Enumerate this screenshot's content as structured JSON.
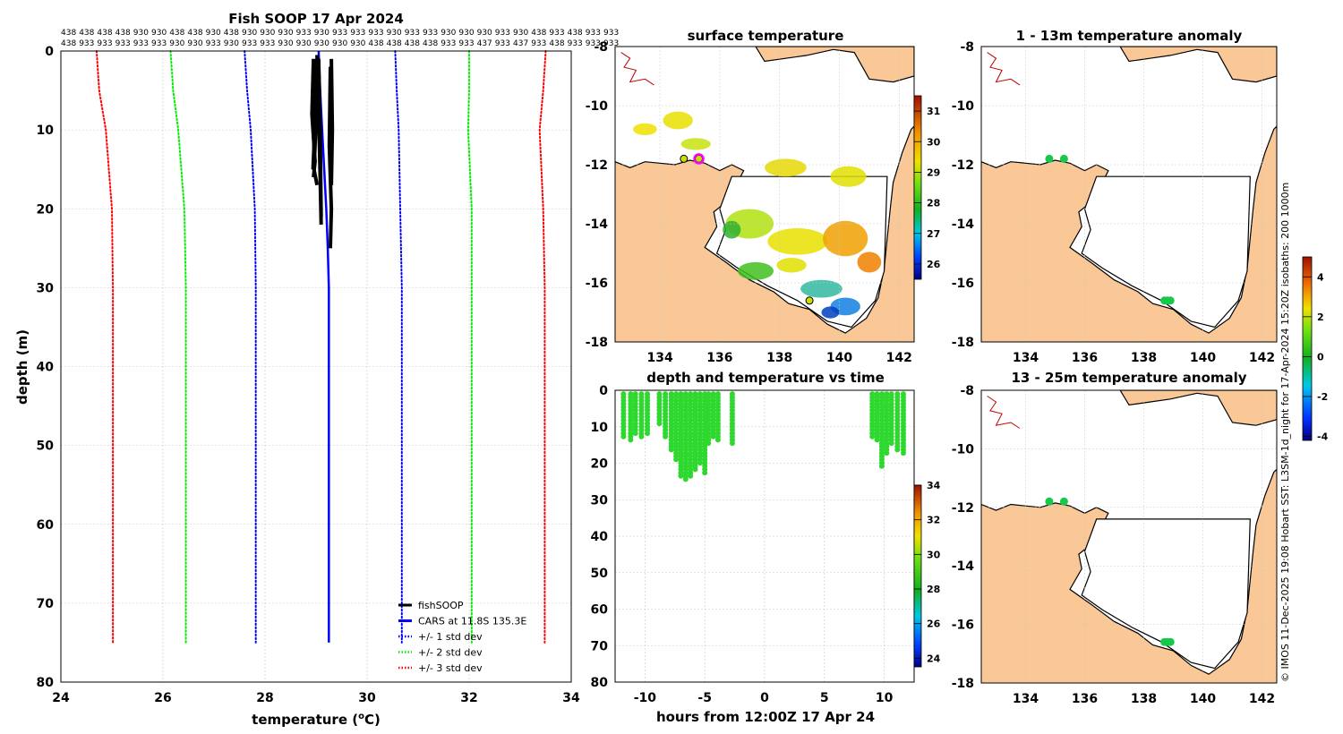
{
  "colors": {
    "land": "#f9c896",
    "coast": "#000000",
    "obs": "#000000",
    "cars": "#0000ff",
    "std1": "#0000ff",
    "std2": "#00ee00",
    "std3": "#ff0000",
    "track_dot": "#ff00ff",
    "anom_dot": "#17c84a",
    "grid": "#c8c8c8"
  },
  "chart_data": [
    {
      "id": "profile",
      "type": "line",
      "title": "Fish SOOP 17 Apr 2024",
      "xlabel": "temperature (",
      "xlabel_unit": "o",
      "xlabel_end": "C)",
      "ylabel": "depth (m)",
      "xlim": [
        24,
        34
      ],
      "ylim": [
        80,
        0
      ],
      "xticks": [
        24,
        26,
        28,
        30,
        32,
        34
      ],
      "yticks": [
        0,
        10,
        20,
        30,
        40,
        50,
        60,
        70,
        80
      ],
      "grid": true,
      "vessel_ids_row1": [
        "438",
        "438",
        "438",
        "438",
        "930",
        "930",
        "438",
        "438",
        "930",
        "438",
        "930",
        "930",
        "930",
        "933",
        "930",
        "933",
        "933",
        "933",
        "930",
        "933",
        "933",
        "930",
        "930",
        "930",
        "933",
        "930",
        "438",
        "933",
        "438",
        "933",
        "933"
      ],
      "vessel_ids_row2": [
        "438",
        "933",
        "933",
        "933",
        "933",
        "933",
        "930",
        "930",
        "933",
        "930",
        "933",
        "933",
        "930",
        "930",
        "930",
        "930",
        "930",
        "438",
        "438",
        "438",
        "438",
        "933",
        "933",
        "437",
        "933",
        "437",
        "933",
        "438",
        "933",
        "933",
        "933"
      ],
      "legend": [
        {
          "label": "fishSOOP",
          "color": "#000000",
          "style": "solid"
        },
        {
          "label": "CARS at 11.8S 135.3E",
          "color": "#0000ff",
          "style": "solid"
        },
        {
          "label": "+/- 1 std dev",
          "color": "#0000ff",
          "style": "dotted"
        },
        {
          "label": "+/- 2 std dev",
          "color": "#00ee00",
          "style": "dotted"
        },
        {
          "label": "+/- 3 std dev",
          "color": "#ff0000",
          "style": "dotted"
        }
      ],
      "series": [
        {
          "name": "CARS",
          "color": "#0000ff",
          "style": "solid",
          "x": [
            29.05,
            29.08,
            29.12,
            29.16,
            29.2,
            29.23,
            29.25,
            29.25,
            29.25
          ],
          "y": [
            0,
            5,
            10,
            15,
            20,
            25,
            30,
            50,
            75
          ]
        },
        {
          "name": "-1 std",
          "color": "#0000ff",
          "style": "dotted",
          "x": [
            27.6,
            27.65,
            27.72,
            27.8,
            27.82,
            27.82
          ],
          "y": [
            0,
            5,
            10,
            20,
            30,
            75
          ]
        },
        {
          "name": "+1 std",
          "color": "#0000ff",
          "style": "dotted",
          "x": [
            30.55,
            30.58,
            30.62,
            30.65,
            30.68,
            30.68
          ],
          "y": [
            0,
            5,
            10,
            20,
            30,
            75
          ]
        },
        {
          "name": "-2 std",
          "color": "#00ee00",
          "style": "dotted",
          "x": [
            26.15,
            26.2,
            26.3,
            26.42,
            26.45,
            26.45
          ],
          "y": [
            0,
            5,
            10,
            20,
            30,
            75
          ]
        },
        {
          "name": "+2 std",
          "color": "#00ee00",
          "style": "dotted",
          "x": [
            32.0,
            32.0,
            31.98,
            32.05,
            32.05,
            32.05
          ],
          "y": [
            0,
            5,
            10,
            20,
            30,
            75
          ]
        },
        {
          "name": "-3 std",
          "color": "#ff0000",
          "style": "dotted",
          "x": [
            24.7,
            24.75,
            24.88,
            25.0,
            25.02,
            25.02
          ],
          "y": [
            0,
            5,
            10,
            20,
            30,
            75
          ]
        },
        {
          "name": "+3 std",
          "color": "#ff0000",
          "style": "dotted",
          "x": [
            33.5,
            33.45,
            33.38,
            33.45,
            33.48,
            33.48
          ],
          "y": [
            0,
            5,
            10,
            20,
            30,
            75
          ]
        }
      ],
      "obs_profiles": [
        {
          "x": [
            28.95,
            28.92,
            28.98,
            28.95
          ],
          "y": [
            1,
            8,
            14,
            16
          ]
        },
        {
          "x": [
            28.98,
            29.0,
            28.96,
            29.02
          ],
          "y": [
            1,
            9,
            15,
            17
          ]
        },
        {
          "x": [
            28.95,
            28.93,
            28.96,
            28.94
          ],
          "y": [
            2,
            7,
            12,
            15
          ]
        },
        {
          "x": [
            29.02,
            29.05,
            29.08,
            29.1
          ],
          "y": [
            0.5,
            8,
            16,
            22
          ]
        },
        {
          "x": [
            29.3,
            29.32,
            29.3
          ],
          "y": [
            1,
            10,
            17
          ]
        },
        {
          "x": [
            29.28,
            29.26,
            29.3,
            29.28
          ],
          "y": [
            2,
            12,
            20,
            25
          ]
        },
        {
          "x": [
            29.05,
            29.08,
            29.1
          ],
          "y": [
            1,
            10,
            21
          ]
        }
      ]
    },
    {
      "id": "sst",
      "type": "heatmap",
      "title": "surface temperature",
      "xlim": [
        132.5,
        142.5
      ],
      "ylim": [
        -18,
        -8
      ],
      "xticks": [
        134,
        136,
        138,
        140,
        142
      ],
      "yticks": [
        -8,
        -10,
        -12,
        -14,
        -16,
        -18
      ],
      "colorbar": {
        "range": [
          25.5,
          31.5
        ],
        "ticks": [
          26,
          27,
          28,
          29,
          30,
          31
        ]
      },
      "track_points": [
        [
          134.8,
          -11.8
        ],
        [
          135.3,
          -11.8
        ],
        [
          139.0,
          -16.6
        ]
      ],
      "current_point": [
        135.3,
        -11.8
      ]
    },
    {
      "id": "depth_time",
      "type": "scatter",
      "title": "depth and temperature vs time",
      "xlabel": "hours from 12:00Z 17 Apr 24",
      "xlim": [
        -12.5,
        12.5
      ],
      "ylim": [
        80,
        0
      ],
      "xticks": [
        -10,
        -5,
        0,
        5,
        10
      ],
      "yticks": [
        0,
        10,
        20,
        30,
        40,
        50,
        60,
        70,
        80
      ],
      "colorbar": {
        "range": [
          23.5,
          34
        ],
        "ticks": [
          24,
          26,
          28,
          30,
          32,
          34
        ]
      },
      "columns": [
        {
          "t": -11.8,
          "zmax": 13
        },
        {
          "t": -11.2,
          "zmax": 14
        },
        {
          "t": -10.8,
          "zmax": 12
        },
        {
          "t": -10.3,
          "zmax": 13
        },
        {
          "t": -9.8,
          "zmax": 12
        },
        {
          "t": -8.8,
          "zmax": 10
        },
        {
          "t": -8.3,
          "zmax": 13
        },
        {
          "t": -7.8,
          "zmax": 17
        },
        {
          "t": -7.4,
          "zmax": 19
        },
        {
          "t": -7.0,
          "zmax": 24
        },
        {
          "t": -6.6,
          "zmax": 25
        },
        {
          "t": -6.2,
          "zmax": 24
        },
        {
          "t": -5.8,
          "zmax": 22
        },
        {
          "t": -5.4,
          "zmax": 20
        },
        {
          "t": -5.0,
          "zmax": 23
        },
        {
          "t": -4.7,
          "zmax": 15
        },
        {
          "t": -4.3,
          "zmax": 13
        },
        {
          "t": -3.9,
          "zmax": 14
        },
        {
          "t": -2.7,
          "zmax": 15
        },
        {
          "t": 9.0,
          "zmax": 13
        },
        {
          "t": 9.4,
          "zmax": 14
        },
        {
          "t": 9.8,
          "zmax": 21
        },
        {
          "t": 10.2,
          "zmax": 18
        },
        {
          "t": 10.6,
          "zmax": 15
        },
        {
          "t": 11.1,
          "zmax": 17
        },
        {
          "t": 11.6,
          "zmax": 18
        }
      ]
    },
    {
      "id": "anom_shallow",
      "type": "scatter",
      "title": "1 - 13m temperature anomaly",
      "xlim": [
        132.5,
        142.5
      ],
      "ylim": [
        -18,
        -8
      ],
      "xticks": [
        134,
        136,
        138,
        140,
        142
      ],
      "yticks": [
        -8,
        -10,
        -12,
        -14,
        -16,
        -18
      ],
      "points": [
        [
          134.8,
          -11.8
        ],
        [
          135.3,
          -11.8
        ],
        [
          138.7,
          -16.6
        ],
        [
          138.8,
          -16.6
        ],
        [
          138.9,
          -16.6
        ]
      ]
    },
    {
      "id": "anom_deep",
      "type": "scatter",
      "title": "13 - 25m temperature anomaly",
      "xlim": [
        132.5,
        142.5
      ],
      "ylim": [
        -18,
        -8
      ],
      "xticks": [
        134,
        136,
        138,
        140,
        142
      ],
      "yticks": [
        -8,
        -10,
        -12,
        -14,
        -16,
        -18
      ],
      "points": [
        [
          134.8,
          -11.8
        ],
        [
          135.3,
          -11.8
        ],
        [
          138.7,
          -16.6
        ],
        [
          138.8,
          -16.6
        ],
        [
          138.9,
          -16.6
        ]
      ]
    },
    {
      "id": "anom_colorbar",
      "type": "heatmap",
      "range": [
        -4.2,
        5
      ],
      "ticks": [
        -4,
        -2,
        0,
        2,
        4
      ]
    }
  ],
  "credit": "© IMOS 11-Dec-2025 19:08 Hobart SST: L3SM-1d_night for 17-Apr-2024 15:20Z isobaths: 200  1000m"
}
